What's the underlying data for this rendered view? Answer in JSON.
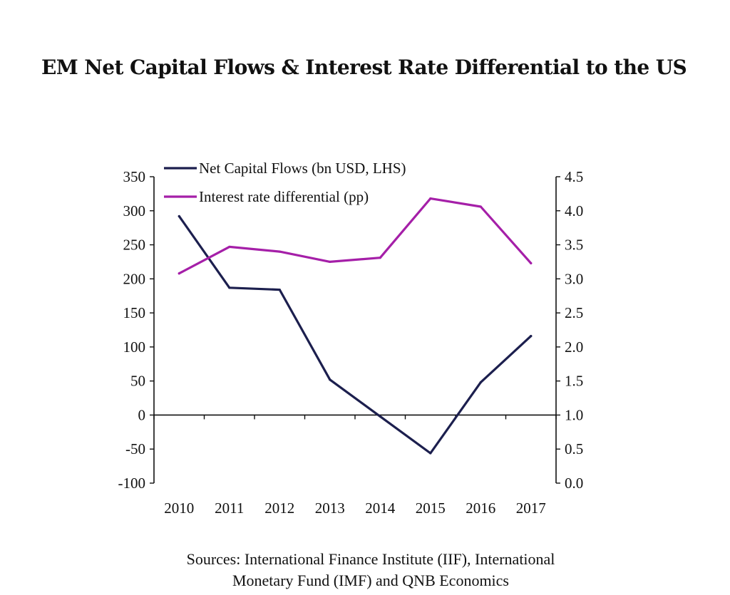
{
  "title": "EM Net Capital Flows & Interest Rate Differential to the US",
  "sources": {
    "line1": "Sources: International Finance Institute (IIF), International",
    "line2": "Monetary Fund (IMF) and QNB Economics"
  },
  "colors": {
    "capital_flows": "#1c1f4e",
    "interest_diff": "#a51fa8",
    "axis": "#111111"
  },
  "chart_data": {
    "type": "line",
    "title": "EM Net Capital Flows & Interest Rate Differential to the US",
    "x": [
      "2010",
      "2011",
      "2012",
      "2013",
      "2014",
      "2015",
      "2016",
      "2017"
    ],
    "series": [
      {
        "name": "Net Capital Flows (bn USD, LHS)",
        "axis": "left",
        "values": [
          292,
          187,
          184,
          52,
          -2,
          -56,
          48,
          116
        ]
      },
      {
        "name": "Interest rate differential (pp)",
        "axis": "right",
        "values": [
          3.08,
          3.47,
          3.4,
          3.25,
          3.31,
          4.18,
          4.06,
          3.23
        ]
      }
    ],
    "left_axis": {
      "ylim": [
        -100,
        350
      ],
      "ticks": [
        "350",
        "300",
        "250",
        "200",
        "150",
        "100",
        "50",
        "0",
        "-50",
        "-100"
      ]
    },
    "right_axis": {
      "ylim": [
        0.0,
        4.5
      ],
      "ticks": [
        "4.5",
        "4.0",
        "3.5",
        "3.0",
        "2.5",
        "2.0",
        "1.5",
        "1.0",
        "0.5",
        "0.0"
      ]
    },
    "legend": {
      "position": "top-left",
      "entries": [
        "Net Capital Flows (bn USD, LHS)",
        "Interest rate differential (pp)"
      ]
    },
    "grid": false
  }
}
